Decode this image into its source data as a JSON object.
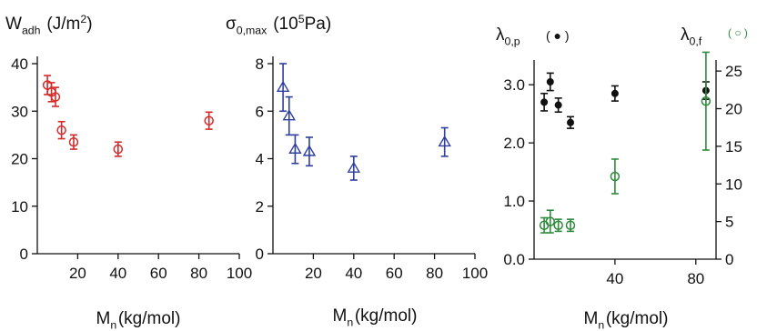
{
  "chart_data": [
    {
      "type": "scatter",
      "title": "",
      "ylabel_parts": {
        "base": "W",
        "sub": "adh",
        "pre": " (J/m",
        "sup": "2",
        "post": ")"
      },
      "xlabel_parts": {
        "base": "M",
        "sub": "n",
        "post": "(kg/mol)"
      },
      "xlim": [
        0,
        100
      ],
      "ylim": [
        0,
        40
      ],
      "x_ticks": [
        "20",
        "40",
        "60",
        "80",
        "100"
      ],
      "y_ticks": [
        "0",
        "10",
        "20",
        "30",
        "40"
      ],
      "grid": false,
      "series": [
        {
          "marker": "circle-open",
          "color": "#d42a2a",
          "x": [
            5,
            7,
            9,
            12,
            18,
            40,
            85
          ],
          "y": [
            35.5,
            34,
            33,
            26,
            23.5,
            22,
            28
          ],
          "err": [
            2,
            2,
            2,
            1.8,
            1.5,
            1.5,
            1.8
          ]
        }
      ]
    },
    {
      "type": "scatter",
      "title": "",
      "ylabel_parts": {
        "base": "σ",
        "sub": "0,max",
        "pre": " (10",
        "sup": "5",
        "post": "Pa)"
      },
      "xlabel_parts": {
        "base": "M",
        "sub": "n",
        "post": "(kg/mol)"
      },
      "xlim": [
        0,
        100
      ],
      "ylim": [
        0,
        8
      ],
      "x_ticks": [
        "20",
        "40",
        "60",
        "80",
        "100"
      ],
      "y_ticks": [
        "0",
        "2",
        "4",
        "6",
        "8"
      ],
      "grid": false,
      "series": [
        {
          "marker": "triangle-open",
          "color": "#2e3f9e",
          "x": [
            5,
            8,
            11,
            18,
            40,
            85
          ],
          "y": [
            7,
            5.8,
            4.4,
            4.3,
            3.6,
            4.7
          ],
          "err": [
            1,
            0.8,
            0.6,
            0.6,
            0.5,
            0.6
          ]
        }
      ]
    },
    {
      "type": "scatter",
      "title": "",
      "ylabel_parts": {
        "base": "λ",
        "sub": "0,p",
        "pre": "",
        "sup": "",
        "post": ""
      },
      "y2label_parts": {
        "base": "λ",
        "sub": "0,f",
        "pre": "",
        "sup": "",
        "post": ""
      },
      "legend_left": "( ● )",
      "legend_right": "( ○ )",
      "xlabel_parts": {
        "base": "M",
        "sub": "n",
        "post": "(kg/mol)"
      },
      "xlim": [
        0,
        90
      ],
      "ylim": [
        0,
        3.3
      ],
      "y2lim": [
        0,
        25.5
      ],
      "x_ticks": [
        "40",
        "80"
      ],
      "y_ticks": [
        "0.0",
        "1.0",
        "2.0",
        "3.0"
      ],
      "y2_ticks": [
        "0",
        "5",
        "10",
        "15",
        "20",
        "25"
      ],
      "grid": false,
      "series": [
        {
          "marker": "circle-filled",
          "axis": "left",
          "color": "#111111",
          "x": [
            5,
            8,
            12,
            18,
            40,
            85
          ],
          "y": [
            2.7,
            3.05,
            2.65,
            2.35,
            2.85,
            2.9
          ],
          "err": [
            0.15,
            0.15,
            0.12,
            0.1,
            0.13,
            0.15
          ]
        },
        {
          "marker": "circle-open",
          "axis": "right",
          "color": "#2e8a3c",
          "x": [
            5,
            8,
            12,
            18,
            40,
            85
          ],
          "y": [
            4.5,
            5,
            4.5,
            4.5,
            11,
            21
          ],
          "err": [
            1,
            1.5,
            0.8,
            0.8,
            2.3,
            6.5
          ]
        }
      ]
    }
  ]
}
